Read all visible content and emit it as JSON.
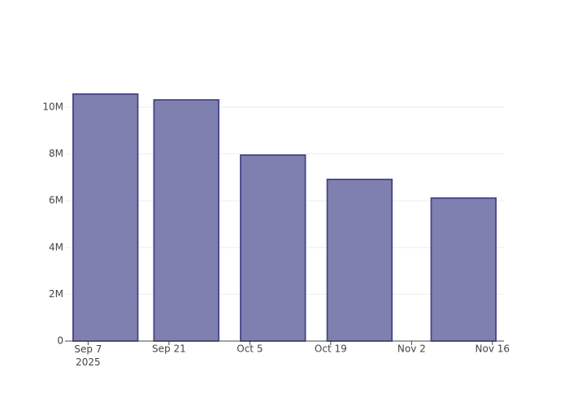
{
  "chart_data": {
    "type": "bar",
    "x": [
      "2025-09-10",
      "2025-09-24",
      "2025-10-09",
      "2025-10-24",
      "2025-11-11"
    ],
    "values": [
      10560000,
      10310000,
      7950000,
      6910000,
      6110000
    ],
    "color": "#8080b0",
    "xlim": [
      "2025-09-03",
      "2025-11-18"
    ],
    "xticks": [
      {
        "value": "2025-09-07",
        "label": "Sep 7\n2025"
      },
      {
        "value": "2025-09-21",
        "label": "Sep 21"
      },
      {
        "value": "2025-10-05",
        "label": "Oct 5"
      },
      {
        "value": "2025-10-19",
        "label": "Oct 19"
      },
      {
        "value": "2025-11-02",
        "label": "Nov 2"
      },
      {
        "value": "2025-11-16",
        "label": "Nov 16"
      }
    ],
    "ylim": [
      0,
      11110000
    ],
    "yticks": [
      0,
      {
        "value": 2000000,
        "label": "2M"
      },
      {
        "value": 4000000,
        "label": "4M"
      },
      {
        "value": 6000000,
        "label": "6M"
      },
      {
        "value": 8000000,
        "label": "8M"
      },
      {
        "value": 10000000,
        "label": "10M"
      }
    ],
    "grid": true
  }
}
